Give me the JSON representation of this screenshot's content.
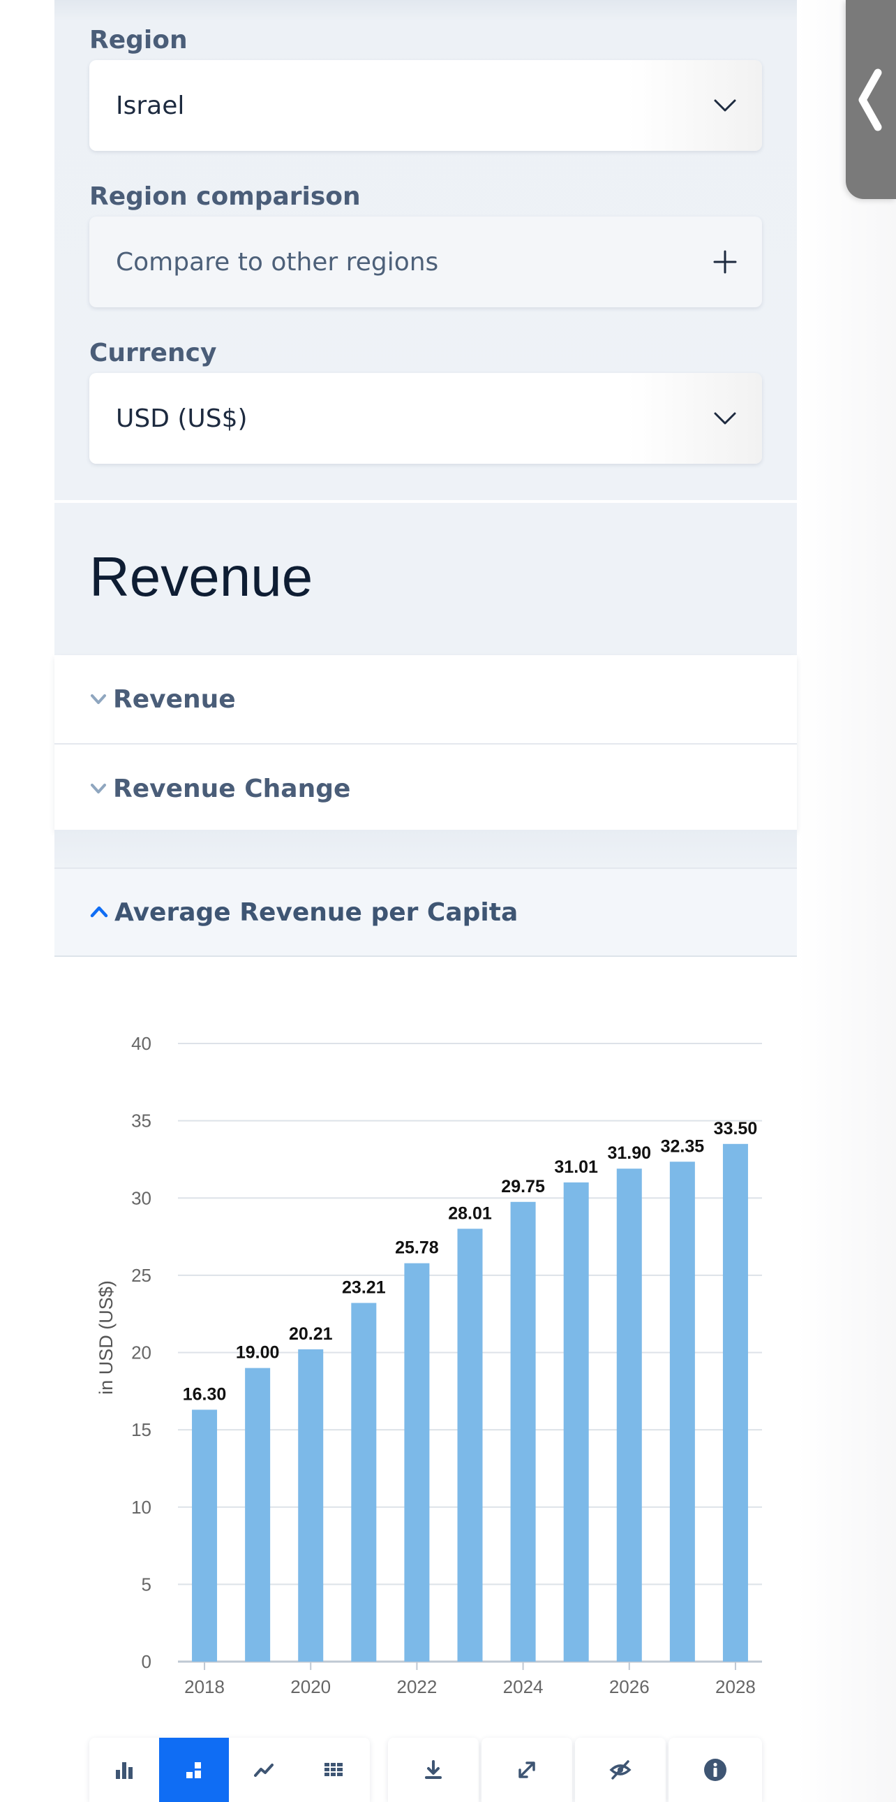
{
  "filters": {
    "region_label": "Region",
    "region_value": "Israel",
    "comparison_label": "Region comparison",
    "comparison_placeholder": "Compare to other regions",
    "currency_label": "Currency",
    "currency_value": "USD (US$)"
  },
  "section": {
    "title": "Revenue"
  },
  "accordions": {
    "revenue": "Revenue",
    "revenue_change": "Revenue Change",
    "avg_revenue_per_capita": "Average Revenue per Capita"
  },
  "colors": {
    "bar": "#7cb9e8",
    "accent": "#0f6df4",
    "label_text": "#4a5d78"
  },
  "chart_data": {
    "type": "bar",
    "categories": [
      "2018",
      "2019",
      "2020",
      "2021",
      "2022",
      "2023",
      "2024",
      "2025",
      "2026",
      "2027",
      "2028"
    ],
    "x_tick_labels": [
      "2018",
      "2020",
      "2022",
      "2024",
      "2026",
      "2028"
    ],
    "values": [
      16.3,
      19.0,
      20.21,
      23.21,
      25.78,
      28.01,
      29.75,
      31.01,
      31.9,
      32.35,
      33.5
    ],
    "value_labels": [
      "16.30",
      "19.00",
      "20.21",
      "23.21",
      "25.78",
      "28.01",
      "29.75",
      "31.01",
      "31.90",
      "32.35",
      "33.50"
    ],
    "ylabel": "in USD (US$)",
    "ylim": [
      0,
      40
    ],
    "yticks": [
      0,
      5,
      10,
      15,
      20,
      25,
      30,
      35,
      40
    ],
    "grid": true
  },
  "toolbar": {
    "icons": [
      "bar-chart-icon",
      "stacked-bar-icon",
      "trend-line-icon",
      "table-icon",
      "download-icon",
      "expand-icon",
      "hide-icon",
      "info-icon"
    ],
    "active": "stacked-bar-icon"
  }
}
